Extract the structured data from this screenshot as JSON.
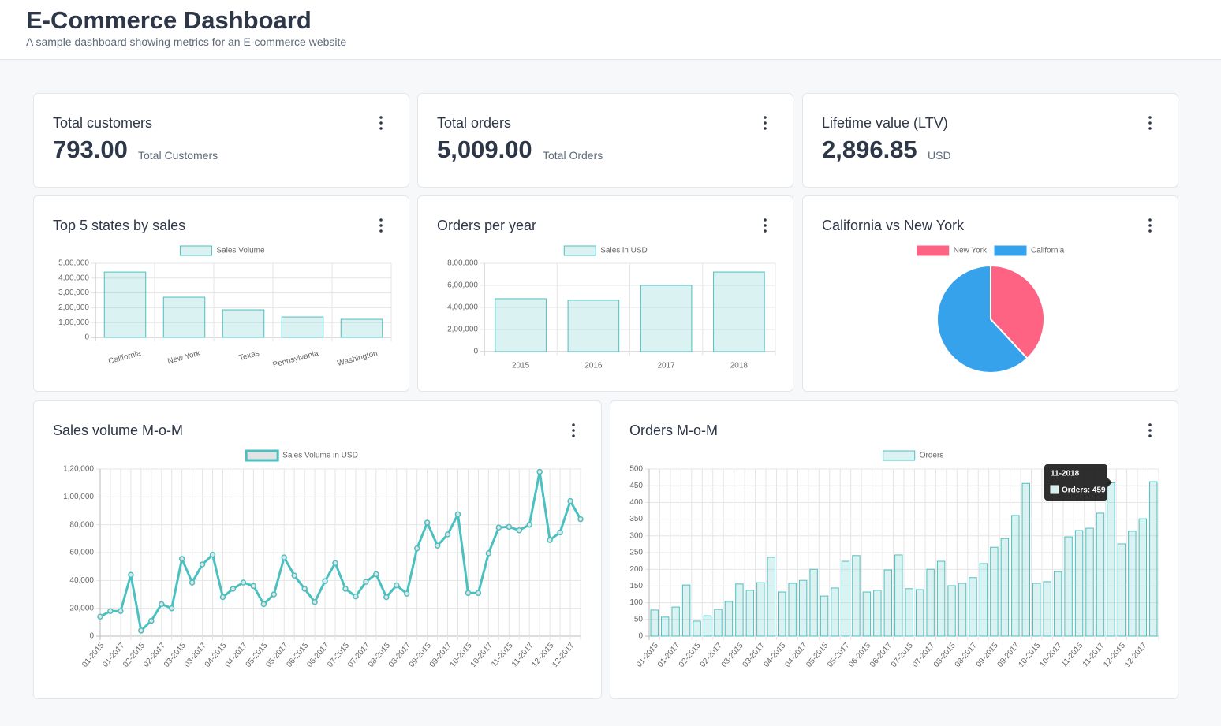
{
  "header": {
    "title": "E-Commerce Dashboard",
    "subtitle": "A sample dashboard showing metrics for an E-commerce website"
  },
  "kpis": [
    {
      "title": "Total customers",
      "value": "793.00",
      "unit": "Total Customers"
    },
    {
      "title": "Total orders",
      "value": "5,009.00",
      "unit": "Total Orders"
    },
    {
      "title": "Lifetime value (LTV)",
      "value": "2,896.85",
      "unit": "USD"
    }
  ],
  "chart_data": [
    {
      "type": "bar",
      "title": "Top 5 states by sales",
      "categories": [
        "California",
        "New York",
        "Texas",
        "Pennsylvania",
        "Washington"
      ],
      "series": [
        {
          "name": "Sales Volume",
          "color": "#4bc0c0",
          "values": [
            441000,
            271000,
            186000,
            138000,
            122000
          ]
        }
      ],
      "ylim": [
        0,
        500000
      ],
      "yticks": [
        0,
        {
          "value": 100000,
          "label": "1,00,000"
        },
        {
          "value": 200000,
          "label": "2,00,000"
        },
        {
          "value": 300000,
          "label": "3,00,000"
        },
        {
          "value": 400000,
          "label": "4,00,000"
        },
        {
          "value": 500000,
          "label": "5,00,000"
        }
      ],
      "grid": true
    },
    {
      "type": "bar",
      "title": "Orders per year",
      "categories": [
        "2015",
        "2016",
        "2017",
        "2018"
      ],
      "series": [
        {
          "name": "Sales in USD",
          "color": "#4bc0c0",
          "values": [
            479000,
            465000,
            600000,
            721000
          ]
        }
      ],
      "ylim": [
        0,
        800000
      ],
      "yticks": [
        0,
        {
          "value": 200000,
          "label": "2,00,000"
        },
        {
          "value": 400000,
          "label": "4,00,000"
        },
        {
          "value": 600000,
          "label": "6,00,000"
        },
        {
          "value": 800000,
          "label": "8,00,000"
        }
      ],
      "grid": true
    },
    {
      "type": "pie",
      "title": "California vs New York",
      "categories": [
        "New York",
        "California"
      ],
      "values": [
        271000,
        441000
      ],
      "colors": [
        "#ff6384",
        "#36a2eb"
      ]
    },
    {
      "type": "line",
      "title": "Sales volume M-o-M",
      "categories": [
        "01-2015",
        null,
        "01-2017",
        null,
        "02-2015",
        null,
        "02-2017",
        null,
        "03-2015",
        null,
        "03-2017",
        null,
        "04-2015",
        null,
        "04-2017",
        null,
        "05-2015",
        null,
        "05-2017",
        null,
        "06-2015",
        null,
        "06-2017",
        null,
        "07-2015",
        null,
        "07-2017",
        null,
        "08-2015",
        null,
        "08-2017",
        null,
        "09-2015",
        null,
        "09-2017",
        null,
        "10-2015",
        null,
        "10-2017",
        null,
        "11-2015",
        null,
        "11-2017",
        null,
        "12-2015",
        null,
        "12-2017",
        null
      ],
      "series": [
        {
          "name": "Sales Volume in USD",
          "color": "#4bc0c0",
          "values": [
            14000,
            18000,
            18000,
            44000,
            4000,
            11000,
            23000,
            20000,
            55500,
            38500,
            51500,
            58500,
            28000,
            34000,
            38500,
            36000,
            23000,
            30000,
            56500,
            43500,
            34000,
            24500,
            39500,
            52500,
            34000,
            28500,
            39000,
            44500,
            28000,
            36500,
            30500,
            63000,
            81500,
            65000,
            73000,
            87500,
            31000,
            31000,
            59500,
            78000,
            78500,
            76000,
            80000,
            118000,
            69000,
            74500,
            97000,
            84000
          ]
        }
      ],
      "ylim": [
        0,
        120000
      ],
      "yticks": [
        0,
        {
          "value": 20000,
          "label": "20,000"
        },
        {
          "value": 40000,
          "label": "40,000"
        },
        {
          "value": 60000,
          "label": "60,000"
        },
        {
          "value": 80000,
          "label": "80,000"
        },
        {
          "value": 100000,
          "label": "1,00,000"
        },
        {
          "value": 120000,
          "label": "1,20,000"
        }
      ],
      "grid": true
    },
    {
      "type": "bar",
      "title": "Orders M-o-M",
      "categories": [
        "01-2015",
        null,
        "01-2017",
        null,
        "02-2015",
        null,
        "02-2017",
        null,
        "03-2015",
        null,
        "03-2017",
        null,
        "04-2015",
        null,
        "04-2017",
        null,
        "05-2015",
        null,
        "05-2017",
        null,
        "06-2015",
        null,
        "06-2017",
        null,
        "07-2015",
        null,
        "07-2017",
        null,
        "08-2015",
        null,
        "08-2017",
        null,
        "09-2015",
        null,
        "09-2017",
        null,
        "10-2015",
        null,
        "10-2017",
        null,
        "11-2015",
        null,
        "11-2017",
        null,
        "12-2015",
        null,
        "12-2017",
        null
      ],
      "series": [
        {
          "name": "Orders",
          "color": "#4bc0c0",
          "values": [
            78,
            57,
            87,
            153,
            45,
            61,
            80,
            104,
            156,
            137,
            160,
            236,
            132,
            158,
            167,
            200,
            120,
            144,
            224,
            241,
            132,
            137,
            198,
            243,
            142,
            139,
            200,
            224,
            151,
            158,
            175,
            217,
            266,
            292,
            361,
            457,
            158,
            163,
            193,
            297,
            316,
            323,
            368,
            459,
            276,
            314,
            351,
            462
          ]
        }
      ],
      "ylim": [
        0,
        500
      ],
      "yticks": [
        0,
        50,
        100,
        150,
        200,
        250,
        300,
        350,
        400,
        450,
        500
      ],
      "grid": true,
      "tooltip": {
        "title": "11-2018",
        "label": "Orders: 459"
      }
    }
  ]
}
